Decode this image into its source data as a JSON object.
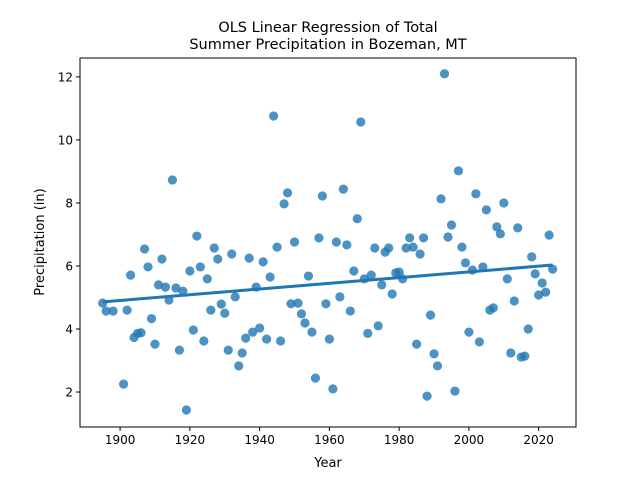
{
  "chart_data": {
    "type": "scatter",
    "title": [
      "OLS Linear Regression of Total",
      "Summer Precipitation in Bozeman, MT"
    ],
    "xlabel": "Year",
    "ylabel": "Precipitation (in)",
    "xlim": [
      1888.5,
      2030.7
    ],
    "ylim": [
      0.89,
      12.6
    ],
    "xticks": [
      1900,
      1920,
      1940,
      1960,
      1980,
      2000,
      2020
    ],
    "yticks": [
      2,
      4,
      6,
      8,
      10,
      12
    ],
    "grid": false,
    "colors": {
      "points": "#1f77b4",
      "line": "#1f77b4"
    },
    "regression_line": {
      "x": [
        1895,
        2024
      ],
      "y": [
        4.86,
        6.03
      ]
    },
    "points": [
      [
        1895,
        4.82
      ],
      [
        1896,
        4.57
      ],
      [
        1898,
        4.57
      ],
      [
        1901,
        2.25
      ],
      [
        1902,
        4.6
      ],
      [
        1903,
        5.71
      ],
      [
        1904,
        3.73
      ],
      [
        1905,
        3.86
      ],
      [
        1906,
        3.88
      ],
      [
        1907,
        6.54
      ],
      [
        1908,
        5.97
      ],
      [
        1909,
        4.33
      ],
      [
        1910,
        3.52
      ],
      [
        1911,
        5.4
      ],
      [
        1912,
        6.22
      ],
      [
        1913,
        5.33
      ],
      [
        1914,
        4.92
      ],
      [
        1915,
        8.73
      ],
      [
        1916,
        5.3
      ],
      [
        1917,
        3.33
      ],
      [
        1918,
        5.2
      ],
      [
        1919,
        1.43
      ],
      [
        1920,
        5.84
      ],
      [
        1921,
        3.97
      ],
      [
        1922,
        6.95
      ],
      [
        1923,
        5.97
      ],
      [
        1924,
        3.62
      ],
      [
        1925,
        5.59
      ],
      [
        1926,
        4.6
      ],
      [
        1927,
        6.57
      ],
      [
        1928,
        6.22
      ],
      [
        1929,
        4.79
      ],
      [
        1930,
        4.5
      ],
      [
        1931,
        3.33
      ],
      [
        1932,
        6.38
      ],
      [
        1933,
        5.02
      ],
      [
        1934,
        2.83
      ],
      [
        1935,
        3.24
      ],
      [
        1936,
        3.71
      ],
      [
        1937,
        6.25
      ],
      [
        1938,
        3.9
      ],
      [
        1939,
        5.33
      ],
      [
        1940,
        4.03
      ],
      [
        1941,
        6.13
      ],
      [
        1942,
        3.68
      ],
      [
        1943,
        5.65
      ],
      [
        1944,
        10.76
      ],
      [
        1945,
        6.6
      ],
      [
        1946,
        3.62
      ],
      [
        1947,
        7.97
      ],
      [
        1948,
        8.32
      ],
      [
        1949,
        4.8
      ],
      [
        1950,
        6.76
      ],
      [
        1951,
        4.82
      ],
      [
        1952,
        4.48
      ],
      [
        1953,
        4.19
      ],
      [
        1954,
        5.68
      ],
      [
        1955,
        3.9
      ],
      [
        1956,
        2.44
      ],
      [
        1957,
        6.89
      ],
      [
        1958,
        8.22
      ],
      [
        1959,
        4.8
      ],
      [
        1960,
        3.68
      ],
      [
        1961,
        2.1
      ],
      [
        1962,
        6.76
      ],
      [
        1963,
        5.02
      ],
      [
        1964,
        8.44
      ],
      [
        1965,
        6.67
      ],
      [
        1966,
        4.57
      ],
      [
        1967,
        5.84
      ],
      [
        1968,
        7.5
      ],
      [
        1969,
        10.57
      ],
      [
        1970,
        5.59
      ],
      [
        1971,
        3.86
      ],
      [
        1972,
        5.71
      ],
      [
        1973,
        6.57
      ],
      [
        1974,
        4.1
      ],
      [
        1975,
        5.4
      ],
      [
        1976,
        6.44
      ],
      [
        1977,
        6.57
      ],
      [
        1978,
        5.11
      ],
      [
        1979,
        5.78
      ],
      [
        1980,
        5.81
      ],
      [
        1981,
        5.59
      ],
      [
        1982,
        6.57
      ],
      [
        1983,
        6.89
      ],
      [
        1984,
        6.6
      ],
      [
        1985,
        3.52
      ],
      [
        1986,
        6.38
      ],
      [
        1987,
        6.89
      ],
      [
        1988,
        1.87
      ],
      [
        1989,
        4.44
      ],
      [
        1990,
        3.21
      ],
      [
        1991,
        2.83
      ],
      [
        1992,
        8.13
      ],
      [
        1993,
        12.1
      ],
      [
        1994,
        6.92
      ],
      [
        1995,
        7.3
      ],
      [
        1996,
        2.03
      ],
      [
        1997,
        9.02
      ],
      [
        1998,
        6.6
      ],
      [
        1999,
        6.1
      ],
      [
        2000,
        3.9
      ],
      [
        2001,
        5.87
      ],
      [
        2002,
        8.29
      ],
      [
        2003,
        3.59
      ],
      [
        2004,
        5.97
      ],
      [
        2005,
        7.78
      ],
      [
        2006,
        4.6
      ],
      [
        2007,
        4.67
      ],
      [
        2008,
        7.24
      ],
      [
        2009,
        7.02
      ],
      [
        2010,
        8.0
      ],
      [
        2011,
        5.59
      ],
      [
        2012,
        3.24
      ],
      [
        2013,
        4.89
      ],
      [
        2014,
        7.21
      ],
      [
        2015,
        3.11
      ],
      [
        2016,
        3.14
      ],
      [
        2017,
        4.0
      ],
      [
        2018,
        6.29
      ],
      [
        2019,
        5.75
      ],
      [
        2020,
        5.08
      ],
      [
        2021,
        5.46
      ],
      [
        2022,
        5.17
      ],
      [
        2023,
        6.98
      ],
      [
        2024,
        5.9
      ]
    ]
  }
}
